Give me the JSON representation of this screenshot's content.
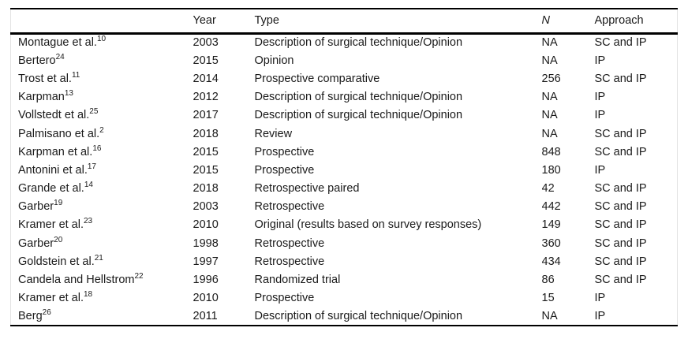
{
  "table": {
    "columns": {
      "author": "",
      "year": "Year",
      "type": "Type",
      "n": "N",
      "approach": "Approach"
    },
    "rows": [
      {
        "author": "Montague et al.",
        "ref": "10",
        "year": "2003",
        "type": "Description of surgical technique/Opinion",
        "n": "NA",
        "approach": "SC and IP"
      },
      {
        "author": "Bertero",
        "ref": "24",
        "year": "2015",
        "type": "Opinion",
        "n": "NA",
        "approach": "IP"
      },
      {
        "author": "Trost et al.",
        "ref": "11",
        "year": "2014",
        "type": "Prospective comparative",
        "n": "256",
        "approach": "SC and IP"
      },
      {
        "author": "Karpman",
        "ref": "13",
        "year": "2012",
        "type": "Description of surgical technique/Opinion",
        "n": "NA",
        "approach": "IP"
      },
      {
        "author": "Vollstedt et al.",
        "ref": "25",
        "year": "2017",
        "type": "Description of surgical technique/Opinion",
        "n": "NA",
        "approach": "IP"
      },
      {
        "author": "Palmisano et al.",
        "ref": "2",
        "year": "2018",
        "type": "Review",
        "n": "NA",
        "approach": "SC and IP"
      },
      {
        "author": "Karpman et al.",
        "ref": "16",
        "year": "2015",
        "type": "Prospective",
        "n": "848",
        "approach": "SC and IP"
      },
      {
        "author": "Antonini et al.",
        "ref": "17",
        "year": "2015",
        "type": "Prospective",
        "n": "180",
        "approach": "IP"
      },
      {
        "author": "Grande et al.",
        "ref": "14",
        "year": "2018",
        "type": "Retrospective paired",
        "n": "42",
        "approach": "SC and IP"
      },
      {
        "author": "Garber",
        "ref": "19",
        "year": "2003",
        "type": "Retrospective",
        "n": "442",
        "approach": "SC and IP"
      },
      {
        "author": "Kramer et al.",
        "ref": "23",
        "year": "2010",
        "type": "Original (results based on survey responses)",
        "n": "149",
        "approach": "SC and IP"
      },
      {
        "author": "Garber",
        "ref": "20",
        "year": "1998",
        "type": "Retrospective",
        "n": "360",
        "approach": "SC and IP"
      },
      {
        "author": "Goldstein et al.",
        "ref": "21",
        "year": "1997",
        "type": "Retrospective",
        "n": "434",
        "approach": "SC and IP"
      },
      {
        "author": "Candela and Hellstrom",
        "ref": "22",
        "year": "1996",
        "type": "Randomized trial",
        "n": "86",
        "approach": "SC and IP"
      },
      {
        "author": "Kramer et al.",
        "ref": "18",
        "year": "2010",
        "type": "Prospective",
        "n": "15",
        "approach": "IP"
      },
      {
        "author": "Berg",
        "ref": "26",
        "year": "2011",
        "type": "Description of surgical technique/Opinion",
        "n": "NA",
        "approach": "IP"
      }
    ],
    "colors": {
      "text": "#1a1a1a",
      "rule": "#000000",
      "side_border": "#e3e3e3",
      "background": "#ffffff"
    }
  }
}
